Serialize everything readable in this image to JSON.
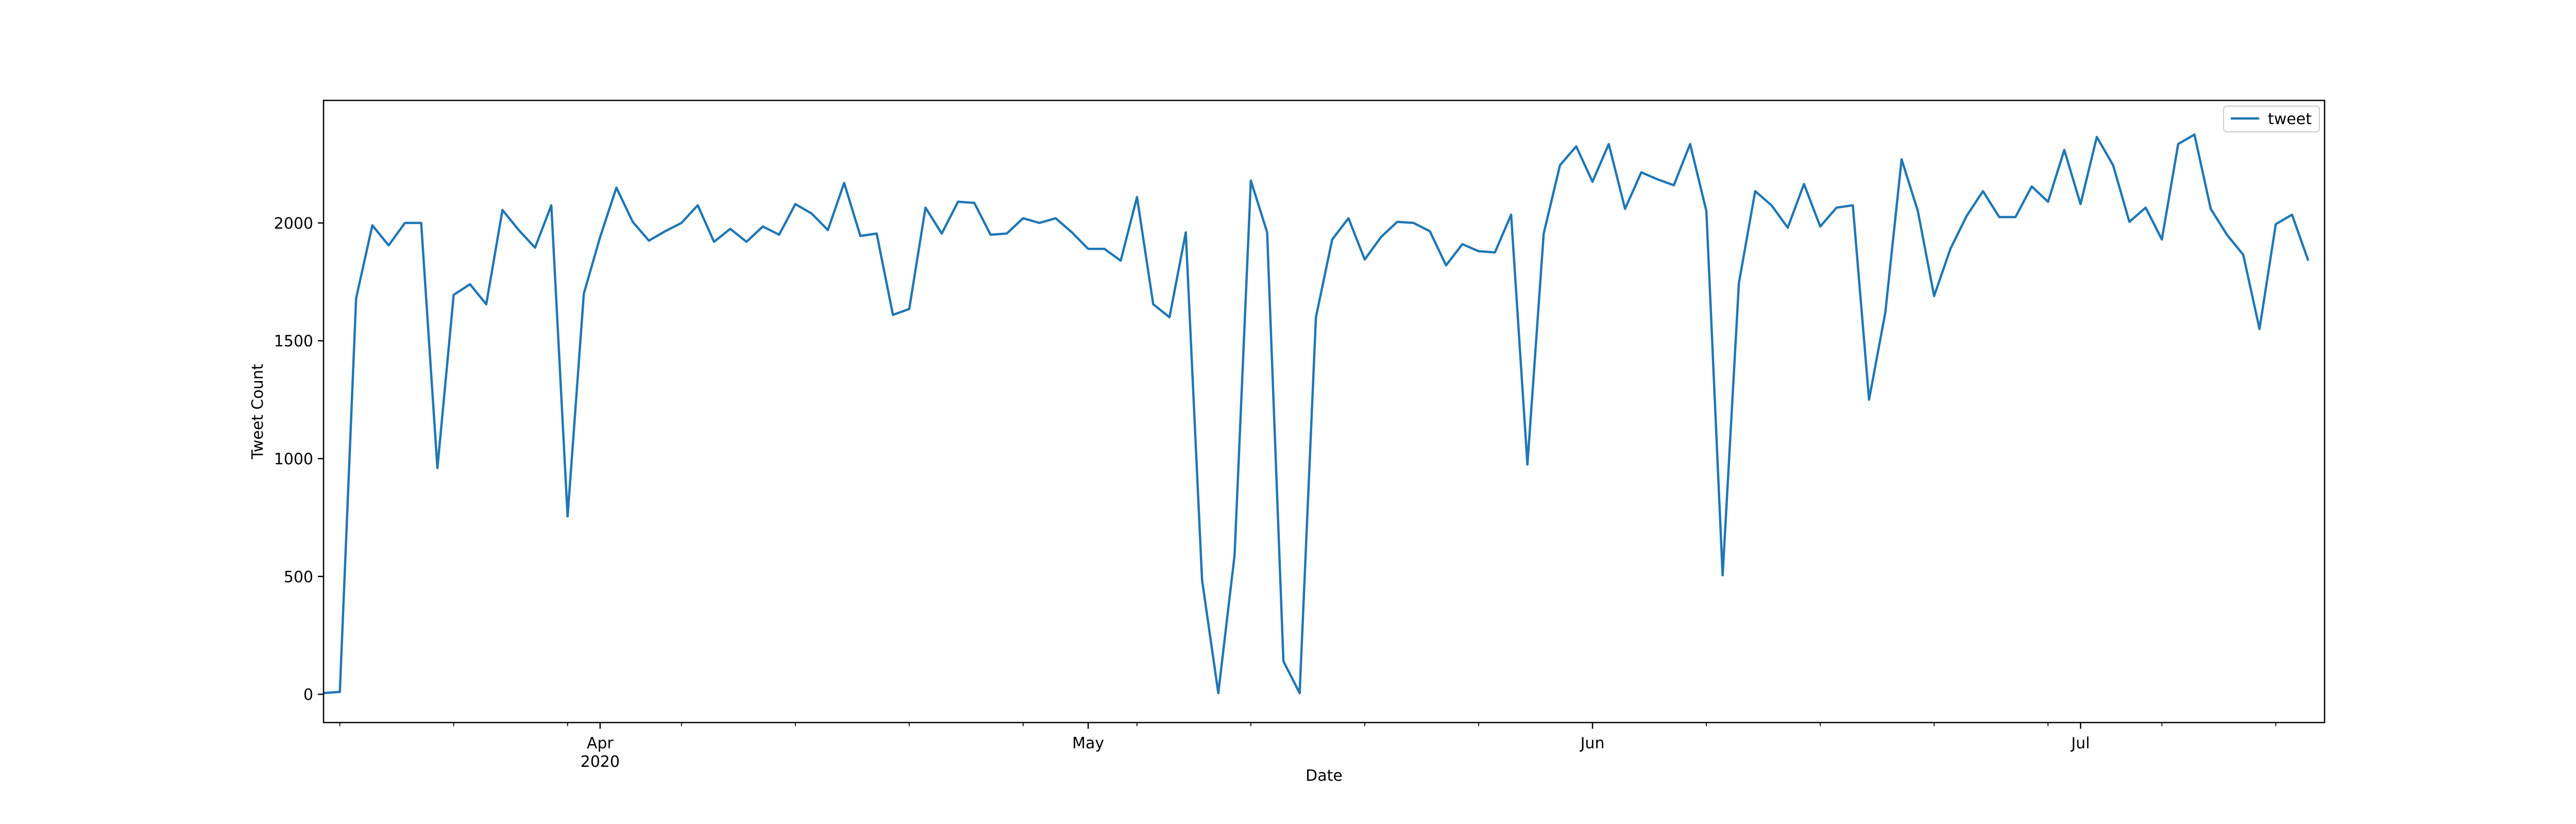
{
  "chart_data": {
    "type": "line",
    "xlabel": "Date",
    "ylabel": "Tweet Count",
    "x_start": "2020-03-15",
    "x_range": [
      "2020-03-15",
      "2020-07-16"
    ],
    "ylim": [
      -120,
      2520
    ],
    "yticks": [
      0,
      500,
      1000,
      1500,
      2000
    ],
    "xticks": [
      {
        "date": "2020-04-01",
        "label": "Apr",
        "sublabel": "2020"
      },
      {
        "date": "2020-05-01",
        "label": "May",
        "sublabel": ""
      },
      {
        "date": "2020-06-01",
        "label": "Jun",
        "sublabel": ""
      },
      {
        "date": "2020-07-01",
        "label": "Jul",
        "sublabel": ""
      }
    ],
    "legend": {
      "position": "upper right"
    },
    "grid": false,
    "series": [
      {
        "name": "tweet",
        "color": "#1f77b4",
        "values": [
          5,
          10,
          1680,
          1990,
          1905,
          2000,
          2000,
          960,
          1695,
          1740,
          1655,
          2055,
          1970,
          1895,
          2075,
          755,
          1700,
          1940,
          2150,
          2005,
          1925,
          1965,
          2000,
          2075,
          1920,
          1975,
          1920,
          1985,
          1950,
          2080,
          2040,
          1970,
          2170,
          1945,
          1955,
          1610,
          1635,
          2065,
          1955,
          2090,
          2085,
          1950,
          1955,
          2020,
          2000,
          2020,
          1960,
          1890,
          1890,
          1840,
          2110,
          1655,
          1600,
          1960,
          485,
          5,
          590,
          2180,
          1960,
          140,
          5,
          1600,
          1930,
          2020,
          1845,
          1940,
          2005,
          2000,
          1965,
          1820,
          1910,
          1880,
          1875,
          2035,
          975,
          1955,
          2245,
          2325,
          2175,
          2335,
          2060,
          2215,
          2185,
          2160,
          2335,
          2050,
          505,
          1745,
          2135,
          2075,
          1980,
          2165,
          1985,
          2065,
          2075,
          1250,
          1620,
          2270,
          2050,
          1690,
          1890,
          2030,
          2135,
          2025,
          2025,
          2155,
          2090,
          2310,
          2080,
          2365,
          2245,
          2005,
          2065,
          1930,
          2335,
          2375,
          2060,
          1950,
          1865,
          1550,
          1995,
          2035,
          1840
        ]
      }
    ]
  }
}
